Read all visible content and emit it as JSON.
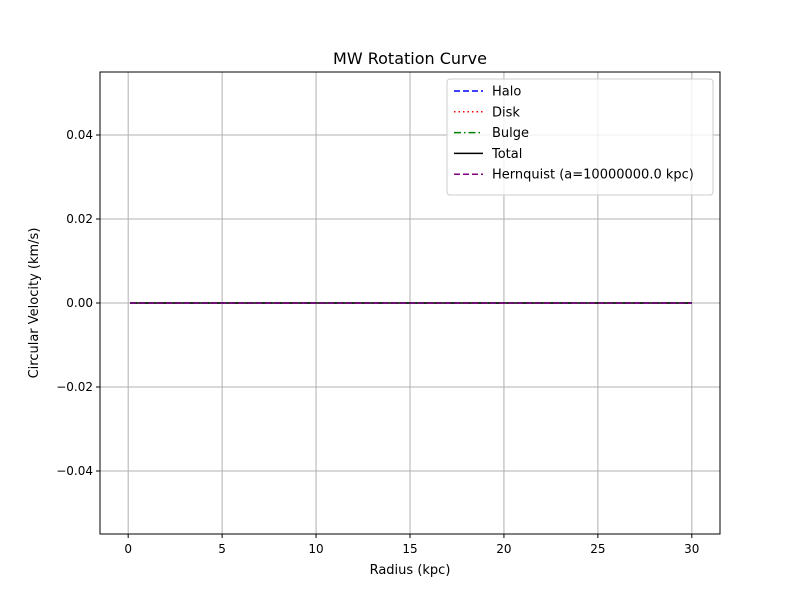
{
  "chart_data": {
    "type": "line",
    "title": "MW Rotation Curve",
    "xlabel": "Radius (kpc)",
    "ylabel": "Circular Velocity (km/s)",
    "xlim": [
      -1.5,
      31.5
    ],
    "ylim": [
      -0.055,
      0.055
    ],
    "xticks": [
      0,
      5,
      10,
      15,
      20,
      25,
      30
    ],
    "xtick_labels": [
      "0",
      "5",
      "10",
      "15",
      "20",
      "25",
      "30"
    ],
    "yticks": [
      -0.04,
      -0.02,
      0.0,
      0.02,
      0.04
    ],
    "ytick_labels": [
      "−0.04",
      "−0.02",
      "0.00",
      "0.02",
      "0.04"
    ],
    "grid": true,
    "legend_position": "top-right",
    "series": [
      {
        "name": "Halo",
        "color": "#0000ff",
        "linestyle": "dashed",
        "x": [
          0.1,
          30
        ],
        "y": [
          0,
          0
        ]
      },
      {
        "name": "Disk",
        "color": "#ff0000",
        "linestyle": "dotted",
        "x": [
          0.1,
          30
        ],
        "y": [
          0,
          0
        ]
      },
      {
        "name": "Bulge",
        "color": "#008000",
        "linestyle": "dashdot",
        "x": [
          0.1,
          30
        ],
        "y": [
          0,
          0
        ]
      },
      {
        "name": "Total",
        "color": "#000000",
        "linestyle": "solid",
        "x": [
          0.1,
          30
        ],
        "y": [
          0,
          0
        ]
      },
      {
        "name": "Hernquist (a=10000000.0 kpc)",
        "color": "#800080",
        "linestyle": "dashed",
        "x": [
          0.1,
          30
        ],
        "y": [
          0,
          0
        ]
      }
    ]
  }
}
